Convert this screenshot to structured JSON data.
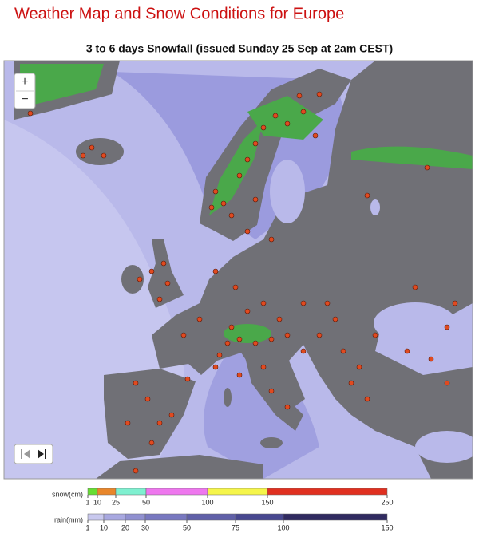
{
  "header": {
    "title": "Weather Map and Snow Conditions for Europe",
    "subtitle": "3 to 6 days Snowfall (issued Sunday 25 Sep at 2am CEST)"
  },
  "map_controls": {
    "zoom_in": "+",
    "zoom_out": "−"
  },
  "legend": {
    "snow": {
      "label": "snow(cm)",
      "ticks": [
        1,
        10,
        25,
        50,
        100,
        150,
        250
      ]
    },
    "rain": {
      "label": "rain(mm)",
      "ticks": [
        1,
        10,
        20,
        30,
        50,
        75,
        100,
        150
      ]
    }
  }
}
